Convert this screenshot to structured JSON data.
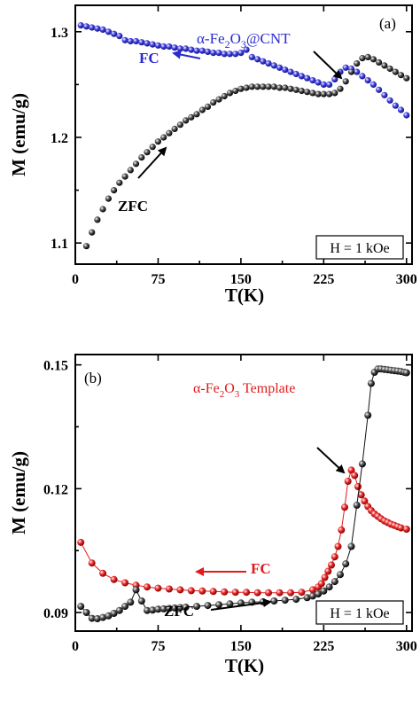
{
  "colors": {
    "zfc": "#111111",
    "fc_a": "#2a2ad0",
    "fc_b": "#e01b1b",
    "axis": "#000000"
  },
  "chart_data": [
    {
      "type": "scatter",
      "panel_label": "(a)",
      "title": "α-Fe2O3@CNT",
      "xlabel": "T(K)",
      "ylabel": "M (emu/g)",
      "xlim": [
        0,
        305
      ],
      "ylim": [
        1.08,
        1.325
      ],
      "xticks": [
        0,
        75,
        150,
        225,
        300
      ],
      "yticks": [
        1.1,
        1.2,
        1.3
      ],
      "ytick_labels": [
        "1.1",
        "1.2",
        "1.3"
      ],
      "grid": false,
      "field_label": "H = 1 kOe",
      "annotations": [
        "FC",
        "ZFC"
      ],
      "series": [
        {
          "name": "FC",
          "x": [
            5,
            10,
            15,
            20,
            25,
            30,
            35,
            40,
            45,
            50,
            55,
            60,
            65,
            70,
            75,
            80,
            85,
            90,
            95,
            100,
            105,
            110,
            115,
            120,
            125,
            130,
            135,
            140,
            145,
            150,
            155,
            160,
            165,
            170,
            175,
            180,
            185,
            190,
            195,
            200,
            205,
            210,
            215,
            220,
            225,
            230,
            235,
            240,
            245,
            250,
            255,
            260,
            265,
            270,
            275,
            280,
            285,
            290,
            295,
            300
          ],
          "y": [
            1.306,
            1.305,
            1.304,
            1.303,
            1.302,
            1.3,
            1.298,
            1.296,
            1.292,
            1.291,
            1.291,
            1.29,
            1.289,
            1.288,
            1.287,
            1.286,
            1.286,
            1.285,
            1.284,
            1.284,
            1.283,
            1.282,
            1.282,
            1.281,
            1.28,
            1.28,
            1.279,
            1.279,
            1.279,
            1.28,
            1.283,
            1.276,
            1.274,
            1.272,
            1.27,
            1.268,
            1.266,
            1.264,
            1.262,
            1.26,
            1.258,
            1.256,
            1.254,
            1.252,
            1.25,
            1.25,
            1.255,
            1.262,
            1.266,
            1.265,
            1.262,
            1.258,
            1.254,
            1.25,
            1.245,
            1.24,
            1.235,
            1.23,
            1.226,
            1.221
          ]
        },
        {
          "name": "ZFC",
          "x": [
            10,
            15,
            20,
            25,
            30,
            35,
            40,
            45,
            50,
            55,
            60,
            65,
            70,
            75,
            80,
            85,
            90,
            95,
            100,
            105,
            110,
            115,
            120,
            125,
            130,
            135,
            140,
            145,
            150,
            155,
            160,
            165,
            170,
            175,
            180,
            185,
            190,
            195,
            200,
            205,
            210,
            215,
            220,
            225,
            230,
            235,
            240,
            245,
            250,
            255,
            260,
            265,
            270,
            275,
            280,
            285,
            290,
            295,
            300
          ],
          "y": [
            1.097,
            1.11,
            1.122,
            1.132,
            1.142,
            1.15,
            1.157,
            1.163,
            1.169,
            1.175,
            1.181,
            1.186,
            1.191,
            1.196,
            1.2,
            1.204,
            1.208,
            1.212,
            1.216,
            1.219,
            1.222,
            1.226,
            1.229,
            1.233,
            1.236,
            1.239,
            1.242,
            1.244,
            1.246,
            1.247,
            1.248,
            1.248,
            1.248,
            1.248,
            1.248,
            1.247,
            1.247,
            1.246,
            1.245,
            1.244,
            1.243,
            1.242,
            1.241,
            1.241,
            1.241,
            1.242,
            1.246,
            1.253,
            1.262,
            1.27,
            1.275,
            1.276,
            1.274,
            1.271,
            1.268,
            1.265,
            1.262,
            1.259,
            1.256
          ]
        }
      ]
    },
    {
      "type": "line",
      "panel_label": "(b)",
      "title": "α-Fe2O3 Template",
      "xlabel": "T(K)",
      "ylabel": "M (emu/g)",
      "xlim": [
        0,
        305
      ],
      "ylim": [
        0.0855,
        0.1525
      ],
      "xticks": [
        0,
        75,
        150,
        225,
        300
      ],
      "yticks": [
        0.09,
        0.12,
        0.15
      ],
      "ytick_labels": [
        "0.09",
        "0.12",
        "0.15"
      ],
      "grid": false,
      "field_label": "H = 1 kOe",
      "annotations": [
        "FC",
        "ZFC"
      ],
      "series": [
        {
          "name": "FC",
          "x": [
            5,
            15,
            25,
            35,
            45,
            55,
            65,
            75,
            85,
            95,
            105,
            115,
            125,
            135,
            145,
            155,
            165,
            175,
            185,
            195,
            205,
            215,
            220,
            223,
            226,
            229,
            232,
            235,
            238,
            241,
            244,
            247,
            250,
            253,
            256,
            259,
            262,
            265,
            268,
            271,
            274,
            277,
            280,
            283,
            286,
            289,
            292,
            295,
            300
          ],
          "y": [
            0.107,
            0.102,
            0.0995,
            0.098,
            0.0972,
            0.0966,
            0.0962,
            0.0959,
            0.0957,
            0.0955,
            0.0953,
            0.0952,
            0.0951,
            0.095,
            0.0949,
            0.0949,
            0.0948,
            0.0948,
            0.0948,
            0.0948,
            0.0949,
            0.0955,
            0.0962,
            0.097,
            0.0985,
            0.1,
            0.1015,
            0.1035,
            0.106,
            0.11,
            0.1155,
            0.1218,
            0.1245,
            0.1232,
            0.1205,
            0.1185,
            0.117,
            0.1157,
            0.1147,
            0.1139,
            0.1133,
            0.1127,
            0.1122,
            0.1118,
            0.1114,
            0.1111,
            0.1108,
            0.1105,
            0.1102
          ]
        },
        {
          "name": "ZFC",
          "x": [
            5,
            10,
            15,
            20,
            25,
            30,
            35,
            40,
            45,
            50,
            55,
            60,
            65,
            70,
            75,
            80,
            85,
            90,
            95,
            100,
            110,
            120,
            130,
            140,
            150,
            160,
            170,
            180,
            190,
            200,
            210,
            215,
            220,
            225,
            230,
            235,
            240,
            245,
            250,
            255,
            260,
            265,
            268,
            271,
            274,
            277,
            280,
            283,
            286,
            289,
            292,
            295,
            298,
            300
          ],
          "y": [
            0.0915,
            0.09,
            0.0886,
            0.0885,
            0.0888,
            0.0892,
            0.0898,
            0.0905,
            0.0915,
            0.0925,
            0.0955,
            0.0928,
            0.0905,
            0.0906,
            0.0908,
            0.0909,
            0.091,
            0.0911,
            0.0912,
            0.0913,
            0.0915,
            0.0917,
            0.0919,
            0.0921,
            0.0923,
            0.0925,
            0.0926,
            0.0928,
            0.093,
            0.0932,
            0.0936,
            0.094,
            0.0945,
            0.0952,
            0.0962,
            0.0975,
            0.0992,
            0.1018,
            0.106,
            0.116,
            0.126,
            0.1378,
            0.1455,
            0.1482,
            0.149,
            0.149,
            0.1489,
            0.1488,
            0.1487,
            0.1486,
            0.1485,
            0.1484,
            0.1482,
            0.1481
          ]
        }
      ]
    }
  ]
}
